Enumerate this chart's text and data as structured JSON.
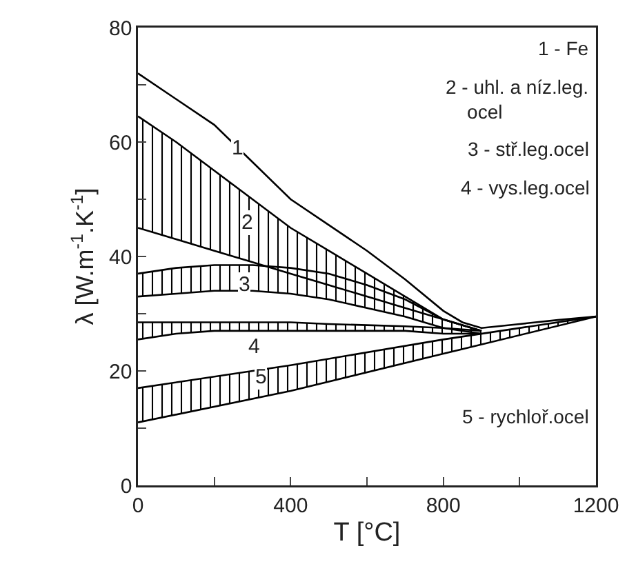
{
  "chart_data": {
    "type": "line",
    "xlabel": "T [°C]",
    "ylabel": "λ [W.m$^{-1}$.K$^{-1}$]",
    "xlim": [
      0,
      1200
    ],
    "ylim": [
      0,
      80
    ],
    "xticks": [
      0,
      {
        "value": 200,
        "label": null
      },
      400,
      {
        "value": 600,
        "label": null
      },
      800,
      {
        "value": 1000,
        "label": null
      },
      1200
    ],
    "yticks": [
      0,
      {
        "value": 10,
        "label": null
      },
      20,
      {
        "value": 30,
        "label": null
      },
      40,
      {
        "value": 50,
        "label": null
      },
      60,
      {
        "value": 70,
        "label": null
      },
      80
    ],
    "grid": false,
    "line_style": "solid",
    "marker": "none",
    "series": [
      {
        "color": "#000000",
        "x": [
          0,
          100,
          200,
          300,
          400,
          500,
          600,
          700,
          800,
          850,
          900,
          1000,
          1100,
          1200
        ],
        "values": [
          72,
          67.5,
          63,
          56.5,
          50,
          45.5,
          41,
          36,
          30.5,
          28.5,
          27.5,
          28.2,
          28.9,
          29.5
        ]
      },
      {
        "color": "#000000",
        "x": [
          0,
          100,
          200,
          300,
          400,
          500,
          600,
          700,
          800,
          900
        ],
        "values": [
          64.5,
          60,
          55,
          50,
          45,
          41,
          37,
          33,
          29,
          27
        ],
        "lower": [
          45,
          43,
          41,
          39,
          37,
          35,
          33,
          31,
          29,
          27
        ],
        "upper": [
          64.5,
          60,
          55,
          50,
          45,
          41,
          37,
          33,
          29,
          27
        ]
      },
      {
        "color": "#000000",
        "x": [
          0,
          100,
          200,
          300,
          400,
          500,
          600,
          700,
          800,
          900
        ],
        "values": [
          45,
          43,
          41,
          39,
          37,
          35,
          33,
          31,
          29,
          27
        ]
      },
      {
        "color": "#000000",
        "x": [
          0,
          100,
          200,
          300,
          400,
          500,
          600,
          700,
          800,
          900
        ],
        "values": [
          37,
          38,
          38.5,
          38.5,
          38,
          37,
          35,
          32.5,
          29,
          27
        ],
        "lower": [
          33,
          33.5,
          34,
          34,
          33.5,
          32.5,
          31,
          29.5,
          27.5,
          26.5
        ],
        "upper": [
          37,
          38,
          38.5,
          38.5,
          38,
          37,
          35,
          32.5,
          29,
          27
        ]
      },
      {
        "color": "#000000",
        "x": [
          0,
          100,
          200,
          300,
          400,
          500,
          600,
          700,
          800,
          900
        ],
        "values": [
          33,
          33.5,
          34,
          34,
          33.5,
          32.5,
          31,
          29.5,
          27.5,
          26.5
        ]
      },
      {
        "color": "#000000",
        "x": [
          0,
          100,
          200,
          300,
          400,
          500,
          600,
          700,
          800,
          900
        ],
        "values": [
          28.5,
          28.5,
          28.5,
          28.5,
          28.5,
          28.2,
          28,
          27.8,
          27.5,
          27
        ],
        "lower": [
          25.5,
          26.5,
          27,
          27,
          27,
          27,
          27,
          27,
          26.5,
          26.5
        ],
        "upper": [
          28.5,
          28.5,
          28.5,
          28.5,
          28.5,
          28.2,
          28,
          27.8,
          27.5,
          27
        ]
      },
      {
        "color": "#000000",
        "x": [
          0,
          100,
          200,
          300,
          400,
          500,
          600,
          700,
          800,
          900
        ],
        "values": [
          25.5,
          26.5,
          27,
          27,
          27,
          27,
          27,
          27,
          26.5,
          26.5
        ]
      },
      {
        "color": "#000000",
        "x": [
          0,
          400,
          800,
          1200
        ],
        "values": [
          17,
          21,
          25.5,
          29.5
        ],
        "lower": [
          11,
          16.5,
          23,
          29.5
        ],
        "upper": [
          17,
          21,
          25.5,
          29.5
        ]
      },
      {
        "color": "#000000",
        "x": [
          0,
          400,
          800,
          1200
        ],
        "values": [
          11,
          16.5,
          23,
          29.5
        ]
      }
    ],
    "annotations": [
      {
        "text": "1",
        "x": 261,
        "y": 59
      },
      "2",
      {
        "text": "3",
        "x": 278,
        "y": 35
      },
      "4",
      "5",
      "1 - Fe",
      "2 - uhl. a níz.leg.\nocel",
      "3 - stř.leg.ocel",
      "4 - vys.leg.ocel",
      "5 - rychloř.ocel"
    ]
  }
}
